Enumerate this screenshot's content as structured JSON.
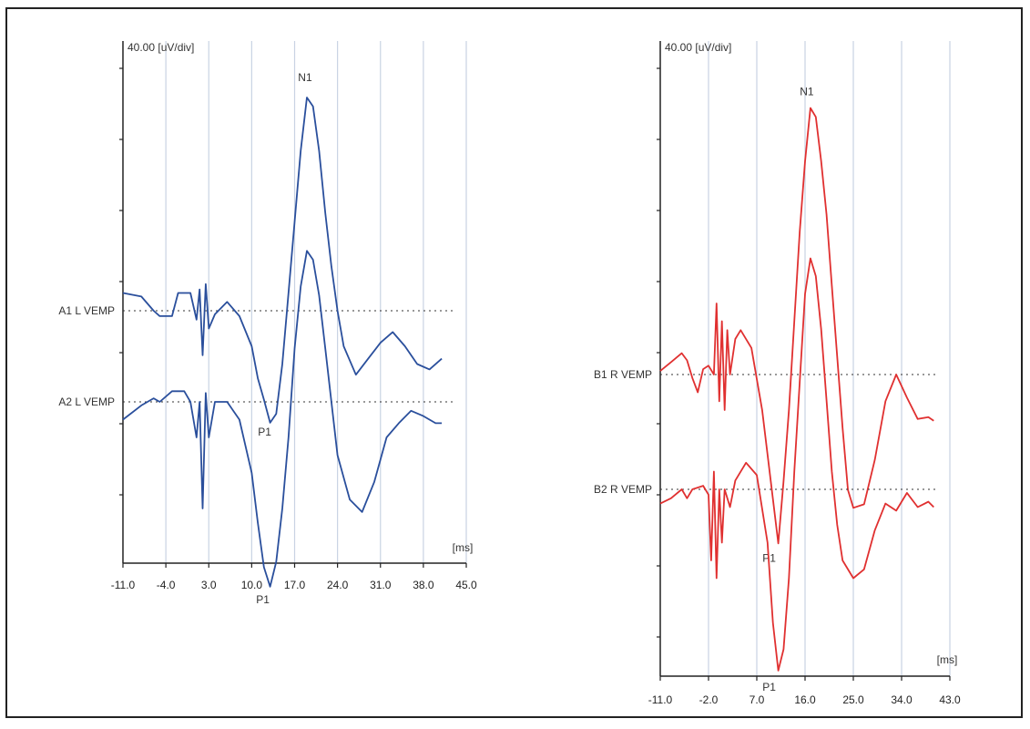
{
  "chart_data": [
    {
      "type": "line",
      "scale_label": "40.00 [uV/div]",
      "x_unit_label": "[ms]",
      "xlim": [
        -11,
        45
      ],
      "x_ticks": [
        -11,
        -4,
        3,
        10,
        17,
        24,
        31,
        38,
        45
      ],
      "x_tick_labels": [
        "-11.0",
        "-4.0",
        "3.0",
        "10.0",
        "17.0",
        "24.0",
        "31.0",
        "38.0",
        "45.0"
      ],
      "grid": "vertical",
      "color": "#2a4f9c",
      "traces": [
        {
          "name": "A1 L VEMP",
          "baseline_uV": 0,
          "points": [
            [
              -11,
              10
            ],
            [
              -8,
              8
            ],
            [
              -6,
              0
            ],
            [
              -5,
              -3
            ],
            [
              -3,
              -3
            ],
            [
              -2,
              10
            ],
            [
              0,
              10
            ],
            [
              1,
              -5
            ],
            [
              1.5,
              12
            ],
            [
              2,
              -25
            ],
            [
              2.5,
              15
            ],
            [
              3,
              -10
            ],
            [
              4,
              -2
            ],
            [
              6,
              5
            ],
            [
              8,
              -3
            ],
            [
              10,
              -20
            ],
            [
              11,
              -38
            ],
            [
              12,
              -50
            ],
            [
              13,
              -63
            ],
            [
              14,
              -58
            ],
            [
              15,
              -30
            ],
            [
              16,
              10
            ],
            [
              17,
              50
            ],
            [
              18,
              90
            ],
            [
              19,
              120
            ],
            [
              20,
              115
            ],
            [
              21,
              90
            ],
            [
              22,
              55
            ],
            [
              23,
              25
            ],
            [
              24,
              0
            ],
            [
              25,
              -20
            ],
            [
              27,
              -36
            ],
            [
              29,
              -27
            ],
            [
              31,
              -18
            ],
            [
              33,
              -12
            ],
            [
              35,
              -20
            ],
            [
              37,
              -30
            ],
            [
              39,
              -33
            ],
            [
              41,
              -27
            ]
          ],
          "peaks": [
            {
              "label": "N1",
              "x": 19
            },
            {
              "label": "P1",
              "x": 13
            }
          ]
        },
        {
          "name": "A2 L VEMP",
          "baseline_uV": -40,
          "points": [
            [
              -11,
              -50
            ],
            [
              -8,
              -42
            ],
            [
              -6,
              -38
            ],
            [
              -5,
              -40
            ],
            [
              -3,
              -34
            ],
            [
              -1,
              -34
            ],
            [
              0,
              -40
            ],
            [
              1,
              -60
            ],
            [
              1.5,
              -40
            ],
            [
              2,
              -100
            ],
            [
              2.5,
              -35
            ],
            [
              3,
              -60
            ],
            [
              4,
              -40
            ],
            [
              6,
              -40
            ],
            [
              8,
              -50
            ],
            [
              10,
              -80
            ],
            [
              11,
              -108
            ],
            [
              12,
              -133
            ],
            [
              13,
              -144
            ],
            [
              14,
              -130
            ],
            [
              15,
              -100
            ],
            [
              16,
              -60
            ],
            [
              17,
              -10
            ],
            [
              18,
              25
            ],
            [
              19,
              45
            ],
            [
              20,
              40
            ],
            [
              21,
              20
            ],
            [
              22,
              -10
            ],
            [
              23,
              -40
            ],
            [
              24,
              -70
            ],
            [
              26,
              -95
            ],
            [
              28,
              -102
            ],
            [
              30,
              -85
            ],
            [
              32,
              -60
            ],
            [
              34,
              -52
            ],
            [
              36,
              -45
            ],
            [
              38,
              -48
            ],
            [
              40,
              -52
            ],
            [
              41,
              -52
            ]
          ],
          "peaks": [
            {
              "label": "P1",
              "x": 13
            }
          ]
        }
      ]
    },
    {
      "type": "line",
      "scale_label": "40.00 [uV/div]",
      "x_unit_label": "[ms]",
      "xlim": [
        -11,
        43
      ],
      "x_ticks": [
        -11,
        -2,
        7,
        16,
        25,
        34,
        43
      ],
      "x_tick_labels": [
        "-11.0",
        "-2.0",
        "7.0",
        "16.0",
        "25.0",
        "34.0",
        "43.0"
      ],
      "grid": "vertical",
      "color": "#e03030",
      "traces": [
        {
          "name": "B1 R VEMP",
          "baseline_uV": 0,
          "points": [
            [
              -11,
              2
            ],
            [
              -9,
              7
            ],
            [
              -7,
              12
            ],
            [
              -6,
              8
            ],
            [
              -5,
              -2
            ],
            [
              -4,
              -10
            ],
            [
              -3,
              3
            ],
            [
              -2,
              5
            ],
            [
              -1,
              0
            ],
            [
              -0.5,
              40
            ],
            [
              0,
              -15
            ],
            [
              0.5,
              30
            ],
            [
              1,
              -20
            ],
            [
              1.5,
              25
            ],
            [
              2,
              0
            ],
            [
              3,
              20
            ],
            [
              4,
              25
            ],
            [
              6,
              15
            ],
            [
              8,
              -20
            ],
            [
              10,
              -70
            ],
            [
              11,
              -95
            ],
            [
              12,
              -60
            ],
            [
              13,
              -20
            ],
            [
              14,
              30
            ],
            [
              15,
              80
            ],
            [
              16,
              120
            ],
            [
              17,
              150
            ],
            [
              18,
              145
            ],
            [
              19,
              120
            ],
            [
              20,
              90
            ],
            [
              21,
              50
            ],
            [
              22,
              10
            ],
            [
              23,
              -30
            ],
            [
              24,
              -65
            ],
            [
              25,
              -75
            ],
            [
              27,
              -73
            ],
            [
              29,
              -48
            ],
            [
              31,
              -15
            ],
            [
              33,
              0
            ],
            [
              35,
              -13
            ],
            [
              37,
              -25
            ],
            [
              39,
              -24
            ],
            [
              40,
              -26
            ]
          ],
          "peaks": [
            {
              "label": "N1",
              "x": 17
            },
            {
              "label": "P1",
              "x": 11
            }
          ]
        },
        {
          "name": "B2 R VEMP",
          "baseline_uV": -50,
          "points": [
            [
              -11,
              -58
            ],
            [
              -9,
              -55
            ],
            [
              -7,
              -50
            ],
            [
              -6,
              -55
            ],
            [
              -5,
              -50
            ],
            [
              -3,
              -48
            ],
            [
              -2,
              -53
            ],
            [
              -1.5,
              -90
            ],
            [
              -1,
              -40
            ],
            [
              -0.5,
              -100
            ],
            [
              0,
              -50
            ],
            [
              0.5,
              -80
            ],
            [
              1,
              -50
            ],
            [
              2,
              -60
            ],
            [
              3,
              -45
            ],
            [
              5,
              -35
            ],
            [
              7,
              -42
            ],
            [
              9,
              -80
            ],
            [
              10,
              -125
            ],
            [
              11,
              -152
            ],
            [
              12,
              -140
            ],
            [
              13,
              -100
            ],
            [
              14,
              -40
            ],
            [
              15,
              10
            ],
            [
              16,
              60
            ],
            [
              17,
              80
            ],
            [
              18,
              70
            ],
            [
              19,
              40
            ],
            [
              20,
              0
            ],
            [
              21,
              -40
            ],
            [
              22,
              -70
            ],
            [
              23,
              -90
            ],
            [
              25,
              -100
            ],
            [
              27,
              -95
            ],
            [
              29,
              -73
            ],
            [
              31,
              -58
            ],
            [
              33,
              -62
            ],
            [
              35,
              -52
            ],
            [
              37,
              -60
            ],
            [
              39,
              -57
            ],
            [
              40,
              -60
            ]
          ],
          "peaks": [
            {
              "label": "P1",
              "x": 11
            }
          ]
        }
      ]
    }
  ]
}
